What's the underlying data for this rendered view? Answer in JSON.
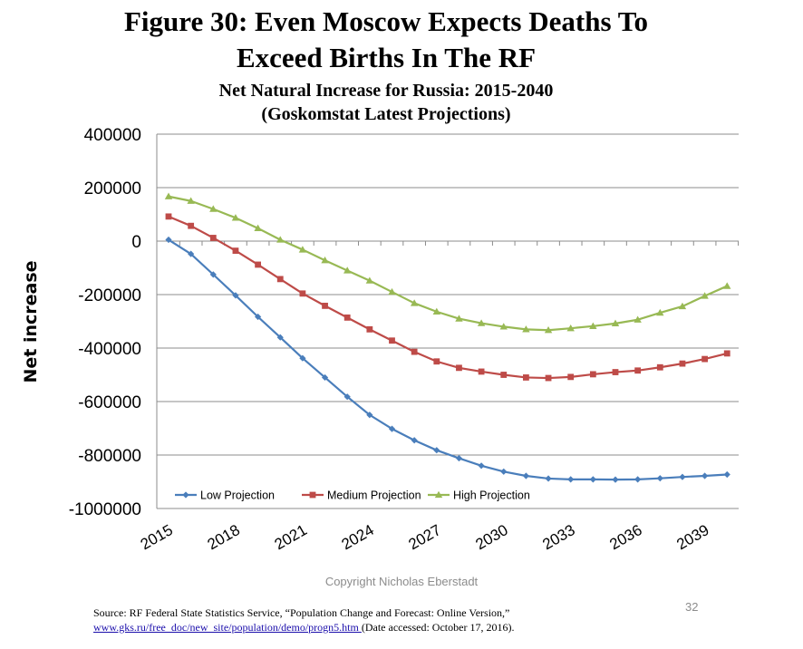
{
  "header": {
    "title_line1": "Figure 30: Even Moscow Expects Deaths To",
    "title_line2": "Exceed Births In The RF",
    "subtitle_line1": "Net Natural Increase for Russia: 2015-2040",
    "subtitle_line2": "(Goskomstat Latest Projections)"
  },
  "chart_data": {
    "type": "line",
    "ylabel": "Net increase",
    "ylim": [
      -1000000,
      400000
    ],
    "yticks": [
      400000,
      200000,
      0,
      -200000,
      -400000,
      -600000,
      -800000,
      -1000000
    ],
    "ytick_labels": [
      "400000",
      "200000",
      "0",
      "-200000",
      "-400000",
      "-600000",
      "-800000",
      "-1000000"
    ],
    "x": [
      2015,
      2016,
      2017,
      2018,
      2019,
      2020,
      2021,
      2022,
      2023,
      2024,
      2025,
      2026,
      2027,
      2028,
      2029,
      2030,
      2031,
      2032,
      2033,
      2034,
      2035,
      2036,
      2037,
      2038,
      2039,
      2040
    ],
    "xtick_values": [
      2015,
      2018,
      2021,
      2024,
      2027,
      2030,
      2033,
      2036,
      2039
    ],
    "xtick_labels": [
      "2015",
      "2018",
      "2021",
      "2024",
      "2027",
      "2030",
      "2033",
      "2036",
      "2039"
    ],
    "grid": true,
    "legend_position": "bottom",
    "series": [
      {
        "name": "Low Projection",
        "color": "#4a7ebb",
        "marker": "diamond",
        "values": [
          5000,
          -48000,
          -125000,
          -203000,
          -283000,
          -360000,
          -438000,
          -510000,
          -582000,
          -650000,
          -702000,
          -745000,
          -782000,
          -812000,
          -840000,
          -862000,
          -878000,
          -888000,
          -891000,
          -891000,
          -892000,
          -891000,
          -887000,
          -882000,
          -878000,
          -873000
        ]
      },
      {
        "name": "Medium Projection",
        "color": "#be4b48",
        "marker": "square",
        "values": [
          92000,
          57000,
          12000,
          -36000,
          -88000,
          -142000,
          -196000,
          -242000,
          -286000,
          -330000,
          -372000,
          -414000,
          -450000,
          -474000,
          -488000,
          -500000,
          -510000,
          -512000,
          -508000,
          -498000,
          -490000,
          -484000,
          -472000,
          -458000,
          -441000,
          -420000
        ]
      },
      {
        "name": "High Projection",
        "color": "#98b954",
        "marker": "triangle",
        "values": [
          167000,
          150000,
          120000,
          87000,
          48000,
          5000,
          -32000,
          -72000,
          -110000,
          -148000,
          -190000,
          -232000,
          -264000,
          -290000,
          -307000,
          -320000,
          -330000,
          -333000,
          -326000,
          -318000,
          -308000,
          -294000,
          -268000,
          -244000,
          -205000,
          -168000
        ]
      }
    ]
  },
  "footer": {
    "copyright": "Copyright Nicholas Eberstadt",
    "page_number": "32",
    "source_line1": "Source: RF Federal State Statistics Service, “Population Change and Forecast: Online Version,”",
    "source_link": "www.gks.ru/free_doc/new_site/population/demo/progn5.htm ",
    "source_line2_rest": "(Date accessed: October 17, 2016)."
  }
}
